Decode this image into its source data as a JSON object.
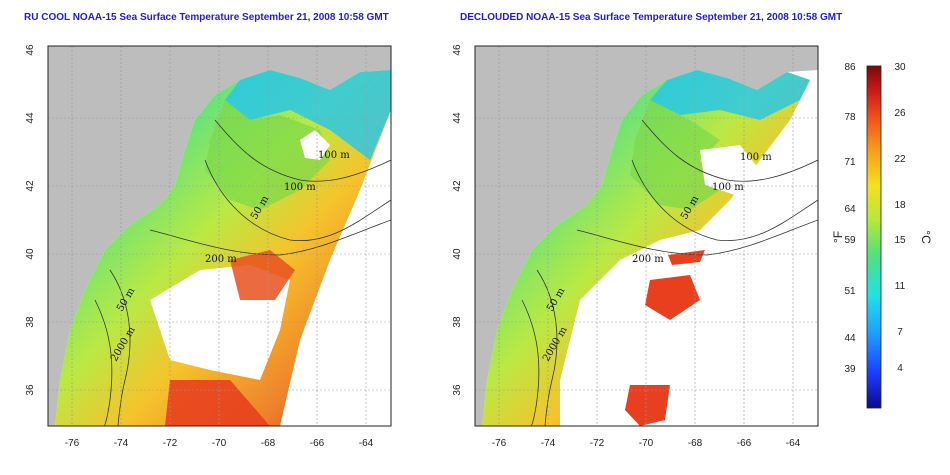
{
  "titles": {
    "left": "RU COOL NOAA-15 Sea Surface Temperature September 21, 2008 10:58 GMT",
    "right": "DECLOUDED NOAA-15 Sea Surface Temperature September 21, 2008 10:58 GMT"
  },
  "axes": {
    "lon_ticks": [
      "-76",
      "-74",
      "-72",
      "-70",
      "-68",
      "-66",
      "-64"
    ],
    "lat_ticks": [
      "36",
      "38",
      "40",
      "42",
      "44",
      "46"
    ]
  },
  "contour_labels": [
    "100 m",
    "100 m",
    "50 m",
    "200 m",
    "50 m",
    "2000 m"
  ],
  "colorbar": {
    "unit_f": "°F",
    "unit_c": "°C",
    "fahrenheit_ticks": [
      "86",
      "78",
      "71",
      "64",
      "59",
      "51",
      "44",
      "39"
    ],
    "celsius_ticks": [
      "30",
      "26",
      "22",
      "18",
      "15",
      "11",
      "7",
      "4"
    ],
    "colors": [
      "#0a0a8c",
      "#1a3cff",
      "#1fa0ff",
      "#22e0e6",
      "#55e07a",
      "#b6e83a",
      "#f5e020",
      "#f7a01c",
      "#f0501e",
      "#c81818",
      "#7a0a0a"
    ]
  }
}
